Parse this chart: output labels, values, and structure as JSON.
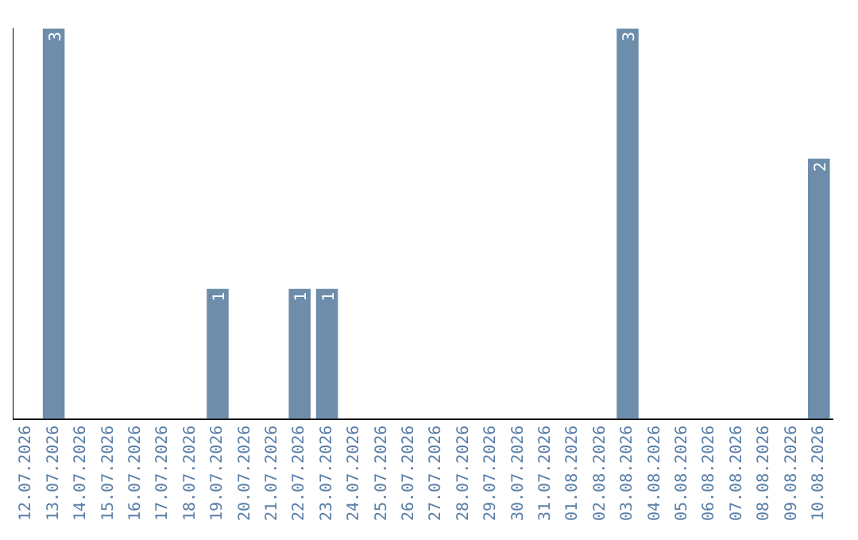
{
  "chart_data": {
    "type": "bar",
    "categories": [
      "12.07.2026",
      "13.07.2026",
      "14.07.2026",
      "15.07.2026",
      "16.07.2026",
      "17.07.2026",
      "18.07.2026",
      "19.07.2026",
      "20.07.2026",
      "21.07.2026",
      "22.07.2026",
      "23.07.2026",
      "24.07.2026",
      "25.07.2026",
      "26.07.2026",
      "27.07.2026",
      "28.07.2026",
      "29.07.2026",
      "30.07.2026",
      "31.07.2026",
      "01.08.2026",
      "02.08.2026",
      "03.08.2026",
      "04.08.2026",
      "05.08.2026",
      "06.08.2026",
      "07.08.2026",
      "08.08.2026",
      "09.08.2026",
      "10.08.2026"
    ],
    "values": [
      0,
      3,
      0,
      0,
      0,
      0,
      0,
      1,
      0,
      0,
      1,
      1,
      0,
      0,
      0,
      0,
      0,
      0,
      0,
      0,
      0,
      0,
      3,
      0,
      0,
      0,
      0,
      0,
      0,
      2
    ],
    "value_labels": [
      null,
      "3",
      null,
      null,
      null,
      null,
      null,
      "1",
      null,
      null,
      "1",
      "1",
      null,
      null,
      null,
      null,
      null,
      null,
      null,
      null,
      null,
      null,
      "3",
      null,
      null,
      null,
      null,
      null,
      null,
      "2"
    ],
    "color": "#6d8dab",
    "grid": false,
    "legend": false,
    "tick_labels": "x"
  }
}
